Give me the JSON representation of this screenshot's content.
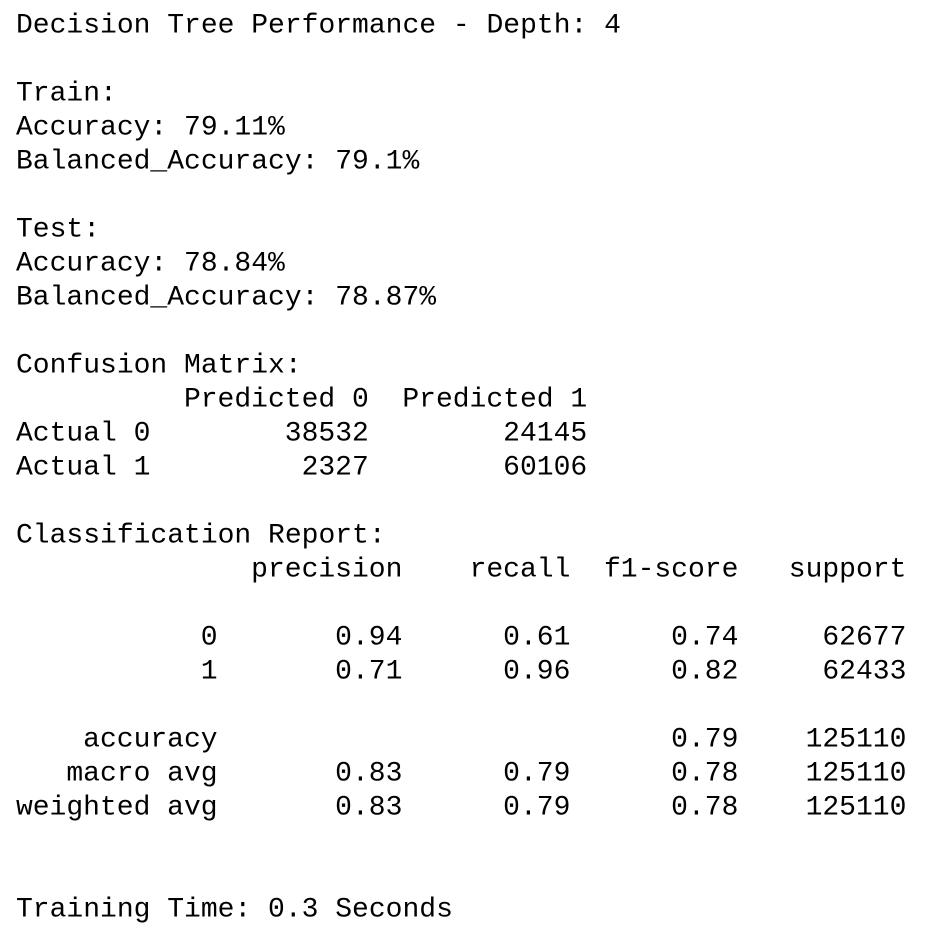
{
  "title": "Decision Tree Performance - Depth: 4",
  "train": {
    "heading": "Train:",
    "lines": [
      "Accuracy: 79.11%",
      "Balanced_Accuracy: 79.1%"
    ]
  },
  "test": {
    "heading": "Test:",
    "lines": [
      "Accuracy: 78.84%",
      "Balanced_Accuracy: 78.87%"
    ]
  },
  "confusion_matrix": {
    "heading": "Confusion Matrix:",
    "columns": [
      "Predicted 0",
      "Predicted 1"
    ],
    "rows": [
      {
        "label": "Actual 0",
        "values": [
          38532,
          24145
        ]
      },
      {
        "label": "Actual 1",
        "values": [
          2327,
          60106
        ]
      }
    ]
  },
  "classification_report": {
    "heading": "Classification Report:",
    "columns": [
      "precision",
      "recall",
      "f1-score",
      "support"
    ],
    "rows": [
      {
        "label": "0",
        "values": [
          0.94,
          0.61,
          0.74,
          62677
        ]
      },
      {
        "label": "1",
        "values": [
          0.71,
          0.96,
          0.82,
          62433
        ]
      }
    ],
    "accuracy": {
      "label": "accuracy",
      "f1_score": 0.79,
      "support": 125110
    },
    "averages": [
      {
        "label": "macro avg",
        "values": [
          0.83,
          0.79,
          0.78,
          125110
        ]
      },
      {
        "label": "weighted avg",
        "values": [
          0.83,
          0.79,
          0.78,
          125110
        ]
      }
    ]
  },
  "footer": "Training Time: 0.3 Seconds"
}
